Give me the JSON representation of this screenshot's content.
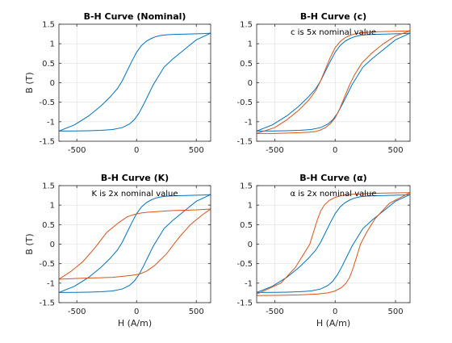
{
  "chart_data": [
    {
      "type": "line",
      "title": "B-H Curve (Nominal)",
      "xlabel": "",
      "ylabel": "B (T)",
      "annotation": "",
      "xlim": [
        -650,
        620
      ],
      "ylim": [
        -1.5,
        1.5
      ],
      "xticks": [
        -500,
        0,
        500
      ],
      "xticklabels": [
        "-500",
        "0",
        "500"
      ],
      "yticks": [
        -1.5,
        -1,
        -0.5,
        0,
        0.5,
        1,
        1.5
      ],
      "yticklabels": [
        "-1.5",
        "-1",
        "-0.5",
        "0",
        "0.5",
        "1",
        "1.5"
      ],
      "grid": true,
      "series": [
        {
          "color": "#0072BD",
          "x": [
            -650,
            -520,
            -400,
            -300,
            -220,
            -160,
            -120,
            -80,
            -40,
            0,
            40,
            80,
            120,
            160,
            200,
            260,
            320,
            380,
            440,
            500,
            560,
            620
          ],
          "y": [
            -1.24,
            -1.08,
            -0.85,
            -0.6,
            -0.36,
            -0.15,
            0.05,
            0.3,
            0.55,
            0.78,
            0.95,
            1.06,
            1.13,
            1.18,
            1.21,
            1.23,
            1.24,
            1.245,
            1.25,
            1.255,
            1.26,
            1.27
          ]
        },
        {
          "color": "#0072BD",
          "x": [
            620,
            500,
            400,
            300,
            230,
            180,
            140,
            100,
            60,
            20,
            -20,
            -60,
            -120,
            -200,
            -300,
            -400,
            -500,
            -650
          ],
          "y": [
            1.27,
            1.1,
            0.85,
            0.6,
            0.4,
            0.15,
            -0.05,
            -0.3,
            -0.55,
            -0.78,
            -0.95,
            -1.06,
            -1.15,
            -1.2,
            -1.22,
            -1.23,
            -1.235,
            -1.24
          ]
        }
      ]
    },
    {
      "type": "line",
      "title": "B-H Curve (c)",
      "xlabel": "",
      "ylabel": "",
      "annotation": "c is 5x nominal value",
      "xlim": [
        -650,
        620
      ],
      "ylim": [
        -1.5,
        1.5
      ],
      "xticks": [
        -500,
        0,
        500
      ],
      "xticklabels": [
        "-500",
        "0",
        "500"
      ],
      "yticks": [
        -1.5,
        -1,
        -0.5,
        0,
        0.5,
        1,
        1.5
      ],
      "yticklabels": [
        "-1.5",
        "-1",
        "-0.5",
        "0",
        "0.5",
        "1",
        "1.5"
      ],
      "grid": true,
      "series": [
        {
          "color": "#0072BD",
          "x": [
            -650,
            -520,
            -400,
            -300,
            -220,
            -160,
            -120,
            -80,
            -40,
            0,
            40,
            80,
            120,
            160,
            200,
            260,
            320,
            380,
            440,
            500,
            560,
            620
          ],
          "y": [
            -1.24,
            -1.08,
            -0.85,
            -0.6,
            -0.36,
            -0.15,
            0.05,
            0.3,
            0.55,
            0.78,
            0.95,
            1.06,
            1.13,
            1.18,
            1.21,
            1.23,
            1.24,
            1.245,
            1.25,
            1.255,
            1.26,
            1.27
          ]
        },
        {
          "color": "#0072BD",
          "x": [
            620,
            500,
            400,
            300,
            230,
            180,
            140,
            100,
            60,
            20,
            -20,
            -60,
            -120,
            -200,
            -300,
            -400,
            -500,
            -650
          ],
          "y": [
            1.27,
            1.1,
            0.85,
            0.6,
            0.4,
            0.15,
            -0.05,
            -0.3,
            -0.55,
            -0.78,
            -0.95,
            -1.06,
            -1.15,
            -1.2,
            -1.22,
            -1.23,
            -1.235,
            -1.24
          ]
        },
        {
          "color": "#D95319",
          "x": [
            -650,
            -500,
            -400,
            -300,
            -220,
            -160,
            -120,
            -80,
            -40,
            0,
            40,
            80,
            120,
            160,
            220,
            300,
            400,
            500,
            620
          ],
          "y": [
            -1.3,
            -1.15,
            -0.95,
            -0.7,
            -0.45,
            -0.2,
            0.05,
            0.35,
            0.65,
            0.9,
            1.05,
            1.15,
            1.21,
            1.25,
            1.28,
            1.3,
            1.31,
            1.32,
            1.33
          ]
        },
        {
          "color": "#D95319",
          "x": [
            620,
            500,
            400,
            300,
            220,
            160,
            120,
            80,
            40,
            0,
            -40,
            -80,
            -120,
            -160,
            -220,
            -300,
            -400,
            -500,
            -650
          ],
          "y": [
            1.33,
            1.2,
            1.0,
            0.75,
            0.5,
            0.2,
            -0.05,
            -0.35,
            -0.65,
            -0.9,
            -1.05,
            -1.15,
            -1.21,
            -1.25,
            -1.27,
            -1.28,
            -1.29,
            -1.3,
            -1.3
          ]
        }
      ]
    },
    {
      "type": "line",
      "title": "B-H Curve (K)",
      "xlabel": "H (A/m)",
      "ylabel": "B (T)",
      "annotation": "K is 2x nominal value",
      "xlim": [
        -650,
        620
      ],
      "ylim": [
        -1.5,
        1.5
      ],
      "xticks": [
        -500,
        0,
        500
      ],
      "xticklabels": [
        "-500",
        "0",
        "500"
      ],
      "yticks": [
        -1.5,
        -1,
        -0.5,
        0,
        0.5,
        1,
        1.5
      ],
      "yticklabels": [
        "-1.5",
        "-1",
        "-0.5",
        "0",
        "0.5",
        "1",
        "1.5"
      ],
      "grid": true,
      "series": [
        {
          "color": "#0072BD",
          "x": [
            -650,
            -520,
            -400,
            -300,
            -220,
            -160,
            -120,
            -80,
            -40,
            0,
            40,
            80,
            120,
            160,
            200,
            260,
            320,
            380,
            440,
            500,
            560,
            620
          ],
          "y": [
            -1.24,
            -1.08,
            -0.85,
            -0.6,
            -0.36,
            -0.15,
            0.05,
            0.3,
            0.55,
            0.78,
            0.95,
            1.06,
            1.13,
            1.18,
            1.21,
            1.23,
            1.24,
            1.245,
            1.25,
            1.255,
            1.26,
            1.27
          ]
        },
        {
          "color": "#0072BD",
          "x": [
            620,
            500,
            400,
            300,
            230,
            180,
            140,
            100,
            60,
            20,
            -20,
            -60,
            -120,
            -200,
            -300,
            -400,
            -500,
            -650
          ],
          "y": [
            1.27,
            1.1,
            0.85,
            0.6,
            0.4,
            0.15,
            -0.05,
            -0.3,
            -0.55,
            -0.78,
            -0.95,
            -1.06,
            -1.15,
            -1.2,
            -1.22,
            -1.23,
            -1.235,
            -1.24
          ]
        },
        {
          "color": "#D95319",
          "x": [
            -650,
            -550,
            -450,
            -350,
            -250,
            -150,
            -80,
            -20,
            40,
            100,
            200,
            300,
            400,
            500,
            620
          ],
          "y": [
            -0.9,
            -0.7,
            -0.45,
            -0.1,
            0.3,
            0.55,
            0.7,
            0.76,
            0.8,
            0.82,
            0.84,
            0.86,
            0.87,
            0.88,
            0.9
          ]
        },
        {
          "color": "#D95319",
          "x": [
            620,
            550,
            450,
            350,
            250,
            150,
            80,
            20,
            -40,
            -100,
            -200,
            -300,
            -400,
            -500,
            -650
          ],
          "y": [
            0.9,
            0.75,
            0.5,
            0.15,
            -0.25,
            -0.55,
            -0.7,
            -0.77,
            -0.8,
            -0.82,
            -0.85,
            -0.86,
            -0.87,
            -0.88,
            -0.9
          ]
        }
      ]
    },
    {
      "type": "line",
      "title": "B-H Curve (α)",
      "xlabel": "H (A/m)",
      "ylabel": "",
      "annotation": "α is 2x nominal value",
      "xlim": [
        -650,
        620
      ],
      "ylim": [
        -1.5,
        1.5
      ],
      "xticks": [
        -500,
        0,
        500
      ],
      "xticklabels": [
        "-500",
        "0",
        "500"
      ],
      "yticks": [
        -1.5,
        -1,
        -0.5,
        0,
        0.5,
        1,
        1.5
      ],
      "yticklabels": [
        "-1.5",
        "-1",
        "-0.5",
        "0",
        "0.5",
        "1",
        "1.5"
      ],
      "grid": true,
      "series": [
        {
          "color": "#0072BD",
          "x": [
            -650,
            -520,
            -400,
            -300,
            -220,
            -160,
            -120,
            -80,
            -40,
            0,
            40,
            80,
            120,
            160,
            200,
            260,
            320,
            380,
            440,
            500,
            560,
            620
          ],
          "y": [
            -1.24,
            -1.08,
            -0.85,
            -0.6,
            -0.36,
            -0.15,
            0.05,
            0.3,
            0.55,
            0.78,
            0.95,
            1.06,
            1.13,
            1.18,
            1.21,
            1.23,
            1.24,
            1.245,
            1.25,
            1.255,
            1.26,
            1.27
          ]
        },
        {
          "color": "#0072BD",
          "x": [
            620,
            500,
            400,
            300,
            230,
            180,
            140,
            100,
            60,
            20,
            -20,
            -60,
            -120,
            -200,
            -300,
            -400,
            -500,
            -650
          ],
          "y": [
            1.27,
            1.1,
            0.85,
            0.6,
            0.4,
            0.15,
            -0.05,
            -0.3,
            -0.55,
            -0.78,
            -0.95,
            -1.06,
            -1.15,
            -1.2,
            -1.22,
            -1.23,
            -1.235,
            -1.24
          ]
        },
        {
          "color": "#D95319",
          "x": [
            -650,
            -450,
            -330,
            -260,
            -210,
            -180,
            -150,
            -120,
            -90,
            -50,
            0,
            60,
            150,
            300,
            450,
            620
          ],
          "y": [
            -1.28,
            -1.0,
            -0.6,
            -0.25,
            0.0,
            0.3,
            0.6,
            0.85,
            1.0,
            1.12,
            1.2,
            1.25,
            1.28,
            1.3,
            1.31,
            1.32
          ]
        },
        {
          "color": "#D95319",
          "x": [
            620,
            450,
            330,
            260,
            210,
            180,
            150,
            120,
            90,
            50,
            0,
            -60,
            -150,
            -300,
            -450,
            -650
          ],
          "y": [
            1.32,
            1.05,
            0.65,
            0.3,
            0.0,
            -0.3,
            -0.6,
            -0.85,
            -1.0,
            -1.12,
            -1.2,
            -1.25,
            -1.28,
            -1.3,
            -1.31,
            -1.32
          ]
        }
      ]
    }
  ]
}
